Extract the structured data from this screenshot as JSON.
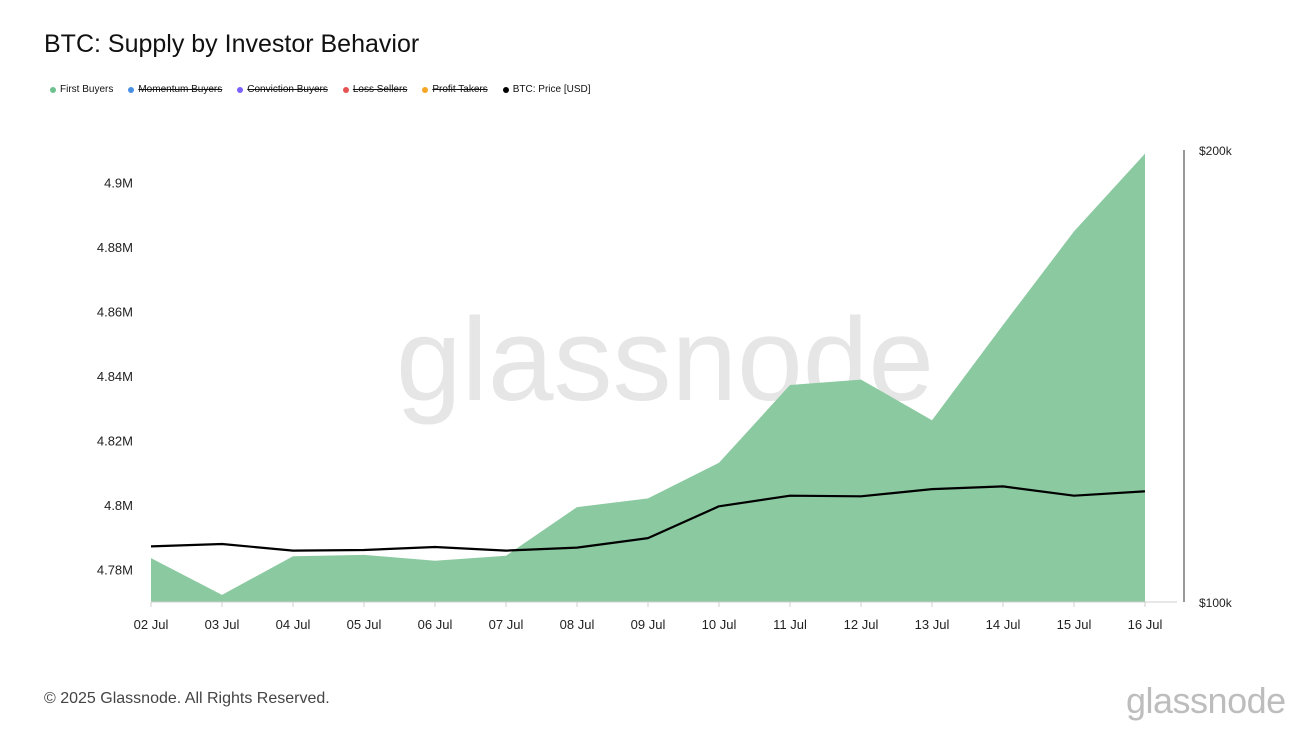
{
  "page": {
    "title": "BTC: Supply by Investor Behavior",
    "copyright": "© 2025 Glassnode. All Rights Reserved.",
    "watermark": "glassnode",
    "footer_logo": "glassnode"
  },
  "legend": [
    {
      "label": "First Buyers",
      "color": "#6cc18e",
      "active": true
    },
    {
      "label": "Momentum Buyers",
      "color": "#4a90e2",
      "active": false
    },
    {
      "label": "Conviction Buyers",
      "color": "#7b61ff",
      "active": false
    },
    {
      "label": "Loss Sellers",
      "color": "#e55353",
      "active": false
    },
    {
      "label": "Profit Takers",
      "color": "#f5a623",
      "active": false
    },
    {
      "label": "BTC: Price [USD]",
      "color": "#000000",
      "active": true
    }
  ],
  "chart_data": {
    "type": "area",
    "title": "BTC: Supply by Investor Behavior",
    "categories": [
      "02 Jul",
      "03 Jul",
      "04 Jul",
      "05 Jul",
      "06 Jul",
      "07 Jul",
      "08 Jul",
      "09 Jul",
      "10 Jul",
      "11 Jul",
      "12 Jul",
      "13 Jul",
      "14 Jul",
      "15 Jul",
      "16 Jul"
    ],
    "series": [
      {
        "name": "First Buyers",
        "type": "area",
        "axis": "left",
        "color": "#8bc9a0",
        "values": [
          4.7836,
          4.7722,
          4.7842,
          4.7846,
          4.7828,
          4.7843,
          4.7994,
          4.8021,
          4.8131,
          4.8372,
          4.8389,
          4.8263,
          4.8558,
          4.8848,
          4.9089
        ]
      },
      {
        "name": "BTC: Price [USD]",
        "type": "line",
        "axis": "right",
        "color": "#000000",
        "values": [
          108900,
          109300,
          108200,
          108300,
          108800,
          108200,
          108700,
          110300,
          115800,
          117700,
          117600,
          118900,
          119400,
          117700,
          118500
        ]
      }
    ],
    "y_left": {
      "min": 4.77,
      "max": 4.91,
      "ticks": [
        4.78,
        4.8,
        4.82,
        4.84,
        4.86,
        4.88,
        4.9
      ],
      "tick_labels": [
        "4.78M",
        "4.8M",
        "4.82M",
        "4.84M",
        "4.86M",
        "4.88M",
        "4.9M"
      ]
    },
    "y_right": {
      "scale": "log",
      "min": 100000,
      "max": 200000,
      "ticks": [
        100000,
        200000
      ],
      "tick_labels": [
        "$100k",
        "$200k"
      ]
    },
    "grid": false,
    "legend_position": "top-left"
  }
}
